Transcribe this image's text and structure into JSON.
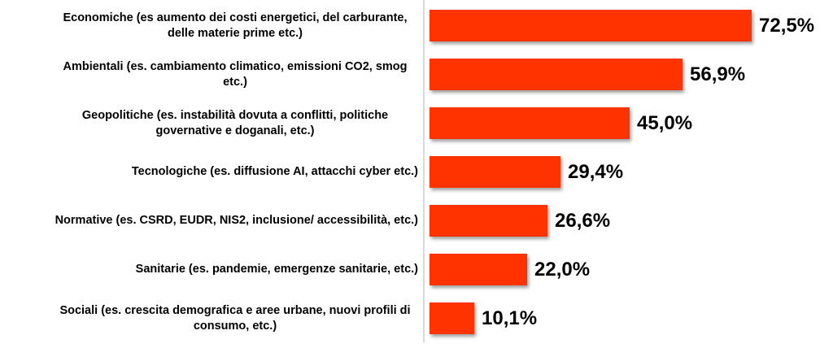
{
  "chart_data": {
    "type": "bar",
    "orientation": "horizontal",
    "title": "",
    "xlabel": "",
    "ylabel": "",
    "grid": "off",
    "legend": "none",
    "xlim": [
      0,
      80
    ],
    "categories": [
      "Economiche (es aumento dei costi energetici, del carburante, delle materie prime etc.)",
      "Ambientali (es. cambiamento climatico, emissioni CO2, smog etc.)",
      "Geopolitiche (es. instabilità dovuta a conflitti, politiche governative e doganali, etc.)",
      "Tecnologiche (es. diffusione AI, attacchi cyber etc.)",
      "Normative (es. CSRD, EUDR, NIS2, inclusione/ accessibilità, etc.)",
      "Sanitarie (es. pandemie, emergenze sanitarie, etc.)",
      "Sociali (es. crescita demografica e aree urbane, nuovi profili di consumo, etc.)"
    ],
    "values": [
      72.5,
      56.9,
      45.0,
      29.4,
      26.6,
      22.0,
      10.1
    ],
    "value_labels": [
      "72,5%",
      "56,9%",
      "45,0%",
      "29,4%",
      "26,6%",
      "22,0%",
      "10,1%"
    ],
    "colors": {
      "bar": "#FF3300",
      "axis_line": "#D9D9D9",
      "text": "#000000"
    }
  }
}
